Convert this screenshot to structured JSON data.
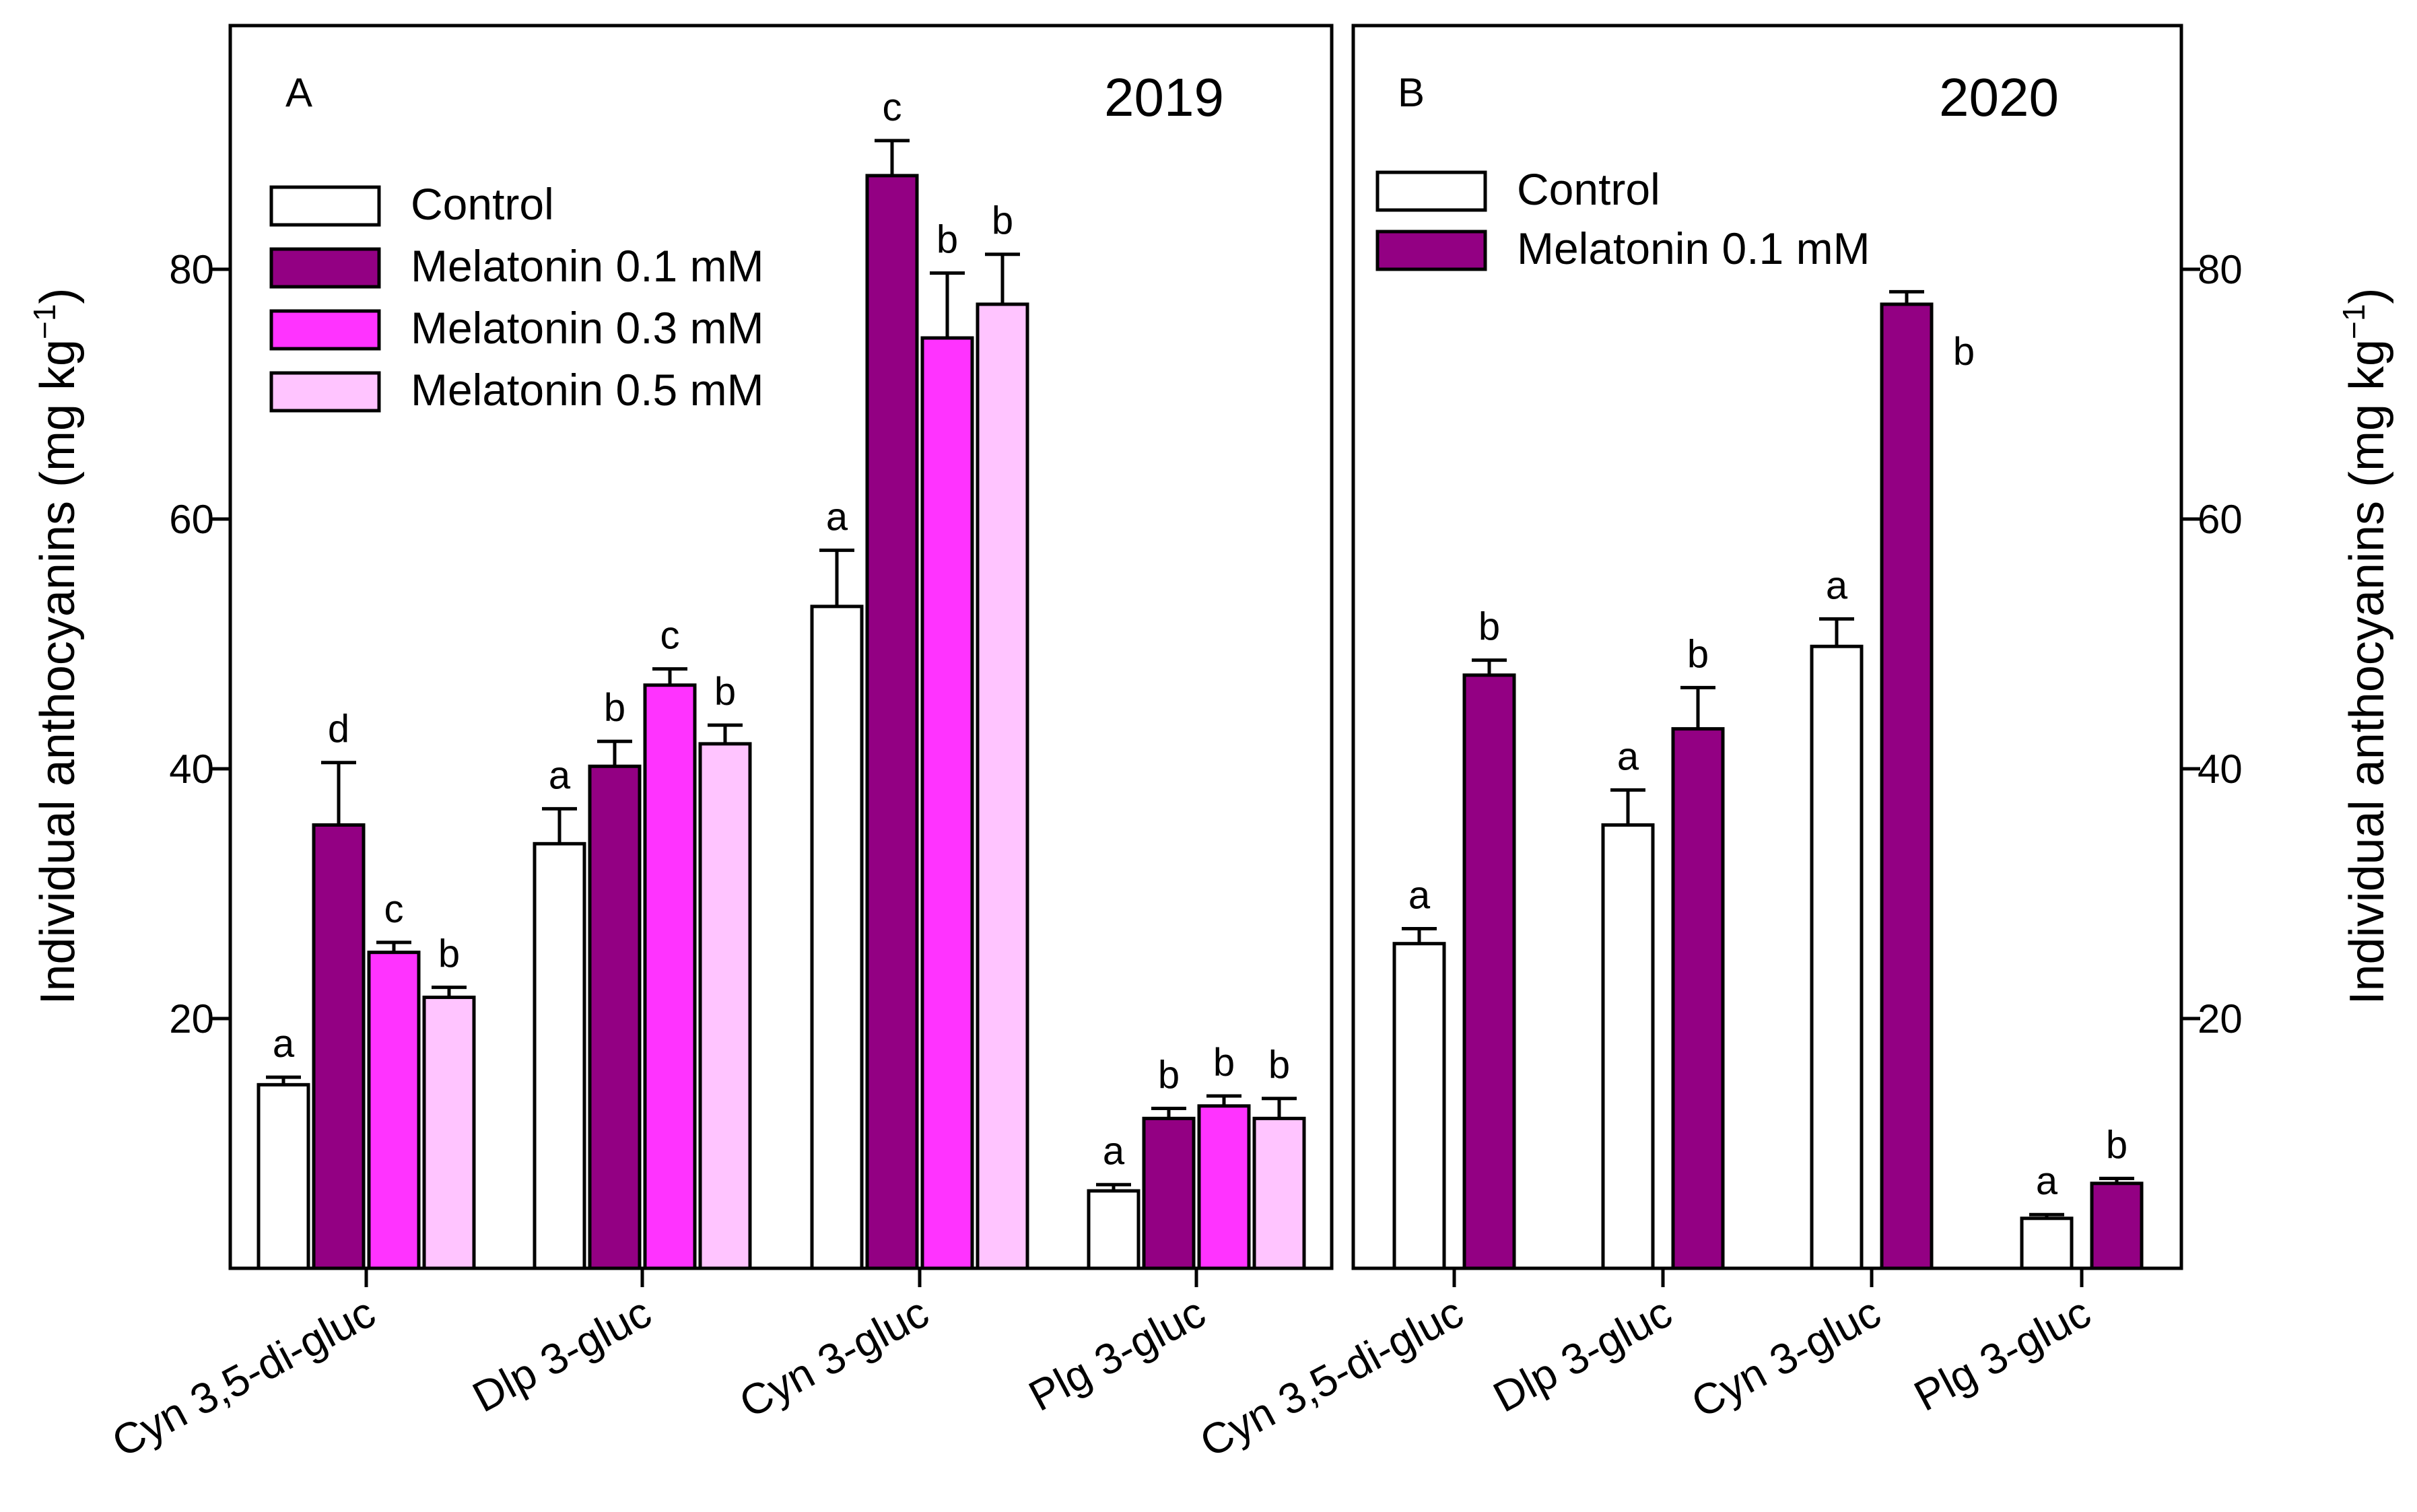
{
  "chart_data": [
    {
      "type": "bar",
      "panel": "A",
      "year": "2019",
      "categories": [
        "Cyn 3,5-di-gluc",
        "Dlp 3-gluc",
        "Cyn 3-gluc",
        "Plg 3-gluc"
      ],
      "ylabel": "Individual anthocyanins (mg kg",
      "ylabel_sup": "−1",
      "ylabel_end": ")",
      "ylim": [
        0,
        100
      ],
      "yticks": [
        20,
        40,
        60,
        80
      ],
      "series": [
        {
          "name": "Control",
          "color": "#ffffff",
          "values": [
            14.7,
            34.0,
            53.0,
            6.2
          ],
          "errors": [
            0.6,
            2.8,
            4.5,
            0.5
          ],
          "letters": [
            "a",
            "a",
            "a",
            "a"
          ]
        },
        {
          "name": "Melatonin 0.1 mM",
          "color": "#930083",
          "values": [
            35.5,
            40.2,
            87.5,
            12.0
          ],
          "errors": [
            5.0,
            2.0,
            2.8,
            0.8
          ],
          "letters": [
            "d",
            "b",
            "c",
            "b"
          ]
        },
        {
          "name": "Melatonin 0.3 mM",
          "color": "#ff33ff",
          "values": [
            25.3,
            46.7,
            74.5,
            13.0
          ],
          "errors": [
            0.8,
            1.3,
            5.2,
            0.8
          ],
          "letters": [
            "c",
            "c",
            "b",
            "b"
          ]
        },
        {
          "name": "Melatonin 0.5 mM",
          "color": "#ffc4ff",
          "values": [
            21.7,
            42.0,
            77.2,
            12.0
          ],
          "errors": [
            0.8,
            1.5,
            4.0,
            1.6
          ],
          "letters": [
            "b",
            "b",
            "b",
            "b"
          ]
        }
      ]
    },
    {
      "type": "bar",
      "panel": "B",
      "year": "2020",
      "categories": [
        "Cyn 3,5-di-gluc",
        "Dlp 3-gluc",
        "Cyn 3-gluc",
        "Plg 3-gluc"
      ],
      "ylabel": "Individual anthocyanins (mg kg",
      "ylabel_sup": "−1",
      "ylabel_end": ")",
      "ylim": [
        0,
        100
      ],
      "yticks": [
        20,
        40,
        60,
        80
      ],
      "series": [
        {
          "name": "Control",
          "color": "#ffffff",
          "values": [
            26.0,
            35.5,
            49.8,
            4.0
          ],
          "errors": [
            1.2,
            2.8,
            2.2,
            0.3
          ],
          "letters": [
            "a",
            "a",
            "a",
            "a"
          ]
        },
        {
          "name": "Melatonin 0.1 mM",
          "color": "#930083",
          "values": [
            47.5,
            43.2,
            77.2,
            6.8
          ],
          "errors": [
            1.2,
            3.3,
            1.0,
            0.4
          ],
          "letters": [
            "b",
            "b",
            "b",
            "b"
          ]
        }
      ]
    }
  ]
}
